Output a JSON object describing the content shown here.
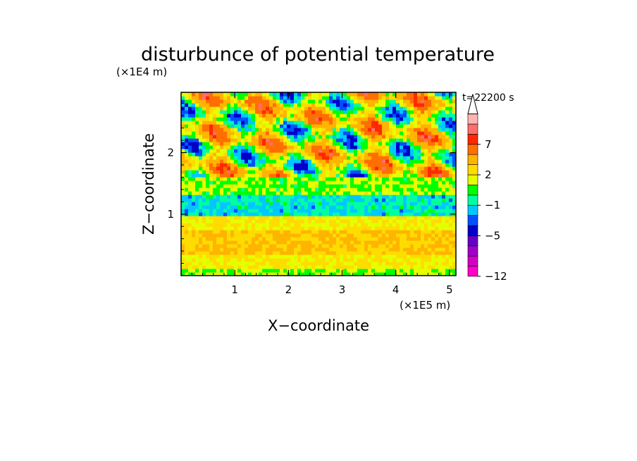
{
  "chart_data": {
    "type": "heatmap",
    "title": "disturbunce of potential temperature",
    "xlabel": "X−coordinate",
    "ylabel": "Z−coordinate",
    "x_unit": "(×1E5 m)",
    "y_unit": "(×1E4 m)",
    "time_label": "t=22200 s",
    "xlim": [
      0,
      5.12
    ],
    "ylim": [
      0,
      2.98
    ],
    "x_ticks": [
      {
        "value": 1,
        "label": "1"
      },
      {
        "value": 2,
        "label": "2"
      },
      {
        "value": 3,
        "label": "3"
      },
      {
        "value": 4,
        "label": "4"
      },
      {
        "value": 5,
        "label": "5"
      }
    ],
    "y_ticks": [
      {
        "value": 1,
        "label": "1"
      },
      {
        "value": 2,
        "label": "2"
      }
    ],
    "grid": false,
    "legend_placement": "right",
    "colorbar": {
      "levels": [
        {
          "value": -12,
          "color": "#ff00c8"
        },
        {
          "value": -10,
          "color": "#d400c8"
        },
        {
          "value": -8,
          "color": "#a000c8"
        },
        {
          "value": -6,
          "color": "#6400c8"
        },
        {
          "value": -5,
          "color": "#0000c8"
        },
        {
          "value": -3,
          "color": "#0050ff"
        },
        {
          "value": -2,
          "color": "#00c8ff"
        },
        {
          "value": -1,
          "color": "#00ffa0"
        },
        {
          "value": 0,
          "color": "#00ff00"
        },
        {
          "value": 1,
          "color": "#e6ff00"
        },
        {
          "value": 2,
          "color": "#ffdc00"
        },
        {
          "value": 3,
          "color": "#ffb400"
        },
        {
          "value": 5,
          "color": "#ff6e00"
        },
        {
          "value": 7,
          "color": "#ff2800"
        },
        {
          "value": 8,
          "color": "#ff6e6e"
        },
        {
          "value": 9,
          "color": "#ffb4b4"
        }
      ],
      "extend_color": "#ffffff",
      "tick_labels": [
        {
          "value": 7,
          "label": "7"
        },
        {
          "value": 2,
          "label": "2"
        },
        {
          "value": -1,
          "label": "−1"
        },
        {
          "value": -5,
          "label": "−5"
        },
        {
          "value": -12,
          "label": "−12"
        }
      ]
    },
    "layers": [
      {
        "z_bottom": 0.0,
        "z_top": 0.1,
        "dominant_value": 1
      },
      {
        "z_bottom": 0.1,
        "z_top": 0.35,
        "dominant_value": 2
      },
      {
        "z_bottom": 0.35,
        "z_top": 0.75,
        "dominant_value": 3
      },
      {
        "z_bottom": 0.75,
        "z_top": 0.95,
        "dominant_value": 2
      },
      {
        "z_bottom": 0.95,
        "z_top": 1.3,
        "dominant_value": -1
      },
      {
        "z_bottom": 1.3,
        "z_top": 1.6,
        "dominant_value": 1
      },
      {
        "z_bottom": 1.6,
        "z_top": 2.98,
        "dominant_value": 2
      }
    ]
  }
}
